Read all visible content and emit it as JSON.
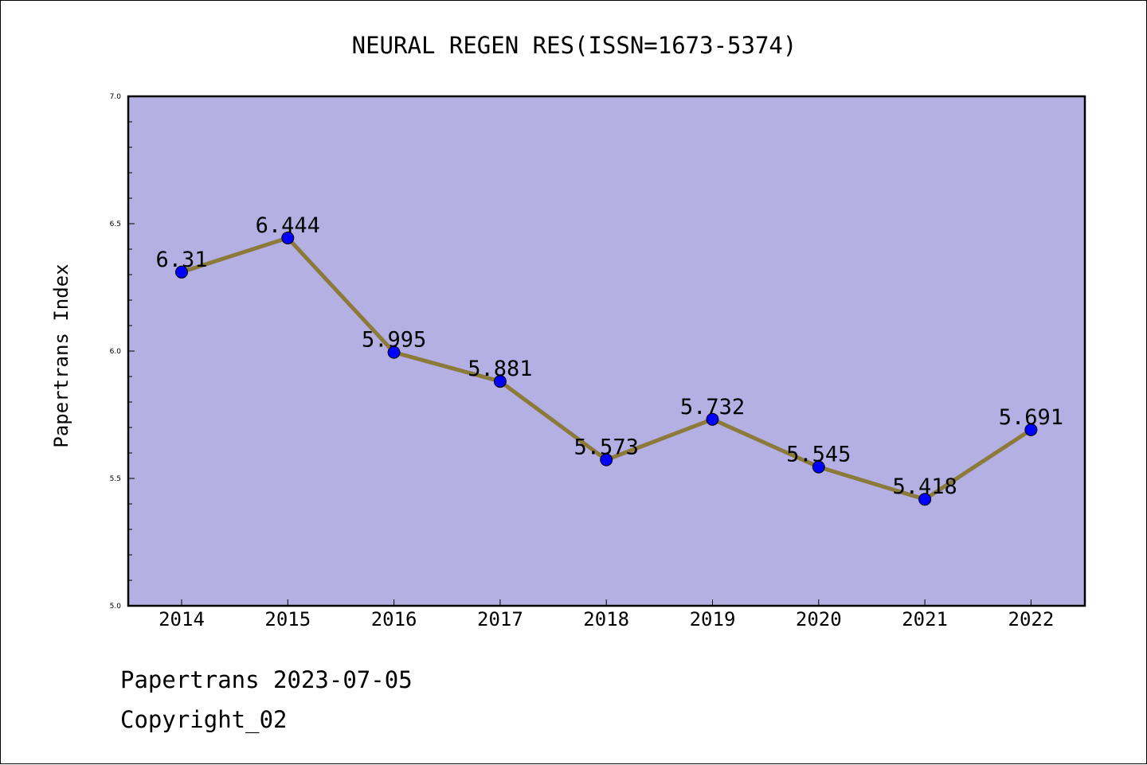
{
  "chart_data": {
    "type": "line",
    "title": "NEURAL REGEN RES(ISSN=1673-5374)",
    "ylabel": "Papertrans Index",
    "xlabel": "",
    "categories": [
      "2014",
      "2015",
      "2016",
      "2017",
      "2018",
      "2019",
      "2020",
      "2021",
      "2022"
    ],
    "values": [
      6.31,
      6.444,
      5.995,
      5.881,
      5.573,
      5.732,
      5.545,
      5.418,
      5.691
    ],
    "data_labels": [
      "6.31",
      "6.444",
      "5.995",
      "5.881",
      "5.573",
      "5.732",
      "5.545",
      "5.418",
      "5.691"
    ],
    "ylim": [
      5.0,
      7.0
    ],
    "y_ticks": [
      "5.0",
      "5.5",
      "6.0",
      "6.5",
      "7.0"
    ],
    "grid": false,
    "legend": "none",
    "colors": {
      "plot_background": "#b5b0e3",
      "line": "#8c7a3a",
      "marker": "#0000ff"
    }
  },
  "footer": {
    "date_line": "Papertrans 2023-07-05",
    "copyright": "Copyright_02"
  }
}
